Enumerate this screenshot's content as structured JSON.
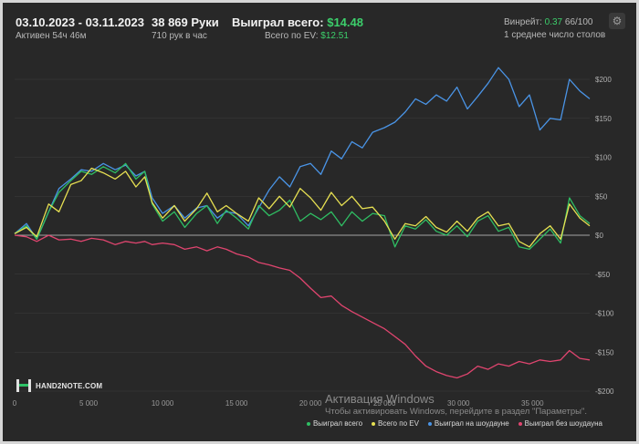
{
  "header": {
    "period": "03.10.2023 - 03.11.2023",
    "active": "Активен 54ч 46м",
    "hands": "38 869 Руки",
    "hands_rate": "710 рук в час",
    "won_label": "Выиграл всего:",
    "won_value": "$14.48",
    "ev_label": "Всего по EV:",
    "ev_value": "$12.51",
    "winrate_label": "Винрейт:",
    "winrate_value": "0.37",
    "winrate_hands": "66/100",
    "tables": "1 среднее число столов"
  },
  "logo": {
    "text": "HAND2NOTE.COM"
  },
  "watermark": {
    "title": "Активация Windows",
    "subtitle": "Чтобы активировать Windows, перейдите в раздел \"Параметры\"."
  },
  "colors": {
    "background": "#282828",
    "grid": "#3d3d3d",
    "zero_line": "#cfcfcf",
    "accent_green": "#3ccf6b"
  },
  "chart_data": {
    "type": "line",
    "xlabel": "",
    "ylabel": "",
    "xlim": [
      0,
      38869
    ],
    "ylim": [
      -200,
      220
    ],
    "x_ticks": [
      0,
      5000,
      10000,
      15000,
      20000,
      25000,
      30000,
      35000
    ],
    "x_tick_labels": [
      "0",
      "5 000",
      "10 000",
      "15 000",
      "20 000",
      "25 000",
      "30 000",
      "35 000"
    ],
    "y_ticks": [
      200,
      150,
      100,
      50,
      0,
      -50,
      -100,
      -150,
      -200
    ],
    "y_tick_labels": [
      "$200",
      "$150",
      "$100",
      "$50",
      "$0",
      "-$50",
      "-$100",
      "-$150",
      "-$200"
    ],
    "grid": true,
    "legend_position": "bottom-right",
    "series": [
      {
        "name": "Выиграл всего",
        "color": "#2fbe63",
        "points": [
          [
            0,
            2
          ],
          [
            800,
            12
          ],
          [
            1500,
            -5
          ],
          [
            2300,
            30
          ],
          [
            3000,
            55
          ],
          [
            3800,
            70
          ],
          [
            4500,
            82
          ],
          [
            5200,
            78
          ],
          [
            6000,
            88
          ],
          [
            6800,
            80
          ],
          [
            7500,
            92
          ],
          [
            8200,
            72
          ],
          [
            8800,
            82
          ],
          [
            9300,
            40
          ],
          [
            10000,
            18
          ],
          [
            10800,
            30
          ],
          [
            11500,
            10
          ],
          [
            12300,
            28
          ],
          [
            13000,
            38
          ],
          [
            13700,
            15
          ],
          [
            14300,
            32
          ],
          [
            15000,
            22
          ],
          [
            15800,
            8
          ],
          [
            16500,
            38
          ],
          [
            17200,
            25
          ],
          [
            17900,
            32
          ],
          [
            18600,
            45
          ],
          [
            19300,
            18
          ],
          [
            20000,
            28
          ],
          [
            20700,
            20
          ],
          [
            21400,
            30
          ],
          [
            22100,
            12
          ],
          [
            22800,
            30
          ],
          [
            23500,
            18
          ],
          [
            24200,
            28
          ],
          [
            25000,
            25
          ],
          [
            25700,
            -15
          ],
          [
            26400,
            12
          ],
          [
            27100,
            8
          ],
          [
            27800,
            20
          ],
          [
            28500,
            5
          ],
          [
            29200,
            0
          ],
          [
            29900,
            12
          ],
          [
            30600,
            -2
          ],
          [
            31300,
            18
          ],
          [
            32000,
            25
          ],
          [
            32700,
            5
          ],
          [
            33400,
            10
          ],
          [
            34100,
            -15
          ],
          [
            34800,
            -18
          ],
          [
            35500,
            -5
          ],
          [
            36200,
            8
          ],
          [
            36900,
            -10
          ],
          [
            37500,
            48
          ],
          [
            38200,
            25
          ],
          [
            38869,
            15
          ]
        ]
      },
      {
        "name": "Всего по EV",
        "color": "#e7e052",
        "points": [
          [
            0,
            2
          ],
          [
            800,
            10
          ],
          [
            1500,
            -2
          ],
          [
            2300,
            40
          ],
          [
            3000,
            30
          ],
          [
            3800,
            65
          ],
          [
            4500,
            70
          ],
          [
            5200,
            86
          ],
          [
            6000,
            80
          ],
          [
            6800,
            72
          ],
          [
            7500,
            82
          ],
          [
            8200,
            62
          ],
          [
            8800,
            75
          ],
          [
            9300,
            42
          ],
          [
            10000,
            22
          ],
          [
            10800,
            38
          ],
          [
            11500,
            18
          ],
          [
            12300,
            34
          ],
          [
            13000,
            54
          ],
          [
            13700,
            30
          ],
          [
            14300,
            38
          ],
          [
            15000,
            28
          ],
          [
            15800,
            18
          ],
          [
            16500,
            48
          ],
          [
            17200,
            34
          ],
          [
            17900,
            50
          ],
          [
            18600,
            36
          ],
          [
            19300,
            60
          ],
          [
            20000,
            48
          ],
          [
            20700,
            32
          ],
          [
            21400,
            55
          ],
          [
            22100,
            38
          ],
          [
            22800,
            50
          ],
          [
            23500,
            34
          ],
          [
            24200,
            36
          ],
          [
            25000,
            18
          ],
          [
            25700,
            -5
          ],
          [
            26400,
            15
          ],
          [
            27100,
            12
          ],
          [
            27800,
            24
          ],
          [
            28500,
            10
          ],
          [
            29200,
            4
          ],
          [
            29900,
            18
          ],
          [
            30600,
            5
          ],
          [
            31300,
            22
          ],
          [
            32000,
            30
          ],
          [
            32700,
            12
          ],
          [
            33400,
            15
          ],
          [
            34100,
            -8
          ],
          [
            34800,
            -15
          ],
          [
            35500,
            2
          ],
          [
            36200,
            12
          ],
          [
            36900,
            -5
          ],
          [
            37500,
            40
          ],
          [
            38200,
            22
          ],
          [
            38869,
            12
          ]
        ]
      },
      {
        "name": "Выиграл на шоудауне",
        "color": "#4a94e6",
        "points": [
          [
            0,
            2
          ],
          [
            800,
            15
          ],
          [
            1500,
            -5
          ],
          [
            2300,
            30
          ],
          [
            3000,
            60
          ],
          [
            3800,
            72
          ],
          [
            4500,
            84
          ],
          [
            5200,
            82
          ],
          [
            6000,
            92
          ],
          [
            6800,
            84
          ],
          [
            7500,
            90
          ],
          [
            8200,
            76
          ],
          [
            8800,
            82
          ],
          [
            9300,
            48
          ],
          [
            10000,
            28
          ],
          [
            10800,
            38
          ],
          [
            11500,
            22
          ],
          [
            12300,
            35
          ],
          [
            13000,
            38
          ],
          [
            13700,
            22
          ],
          [
            14300,
            30
          ],
          [
            15000,
            28
          ],
          [
            15800,
            12
          ],
          [
            16500,
            35
          ],
          [
            17200,
            58
          ],
          [
            17900,
            75
          ],
          [
            18600,
            62
          ],
          [
            19300,
            88
          ],
          [
            20000,
            92
          ],
          [
            20700,
            78
          ],
          [
            21400,
            108
          ],
          [
            22100,
            98
          ],
          [
            22800,
            120
          ],
          [
            23500,
            112
          ],
          [
            24200,
            132
          ],
          [
            25000,
            138
          ],
          [
            25700,
            145
          ],
          [
            26400,
            158
          ],
          [
            27100,
            175
          ],
          [
            27800,
            168
          ],
          [
            28500,
            180
          ],
          [
            29200,
            172
          ],
          [
            29900,
            190
          ],
          [
            30600,
            162
          ],
          [
            31300,
            178
          ],
          [
            32000,
            195
          ],
          [
            32700,
            215
          ],
          [
            33400,
            200
          ],
          [
            34100,
            165
          ],
          [
            34800,
            180
          ],
          [
            35500,
            135
          ],
          [
            36200,
            150
          ],
          [
            36900,
            148
          ],
          [
            37500,
            200
          ],
          [
            38200,
            185
          ],
          [
            38869,
            175
          ]
        ]
      },
      {
        "name": "Выиграл без шоудауна",
        "color": "#e0456f",
        "points": [
          [
            0,
            0
          ],
          [
            800,
            -2
          ],
          [
            1500,
            -8
          ],
          [
            2300,
            0
          ],
          [
            3000,
            -6
          ],
          [
            3800,
            -5
          ],
          [
            4500,
            -8
          ],
          [
            5200,
            -4
          ],
          [
            6000,
            -6
          ],
          [
            6800,
            -12
          ],
          [
            7500,
            -8
          ],
          [
            8200,
            -10
          ],
          [
            8800,
            -8
          ],
          [
            9300,
            -12
          ],
          [
            10000,
            -10
          ],
          [
            10800,
            -12
          ],
          [
            11500,
            -18
          ],
          [
            12300,
            -15
          ],
          [
            13000,
            -20
          ],
          [
            13700,
            -15
          ],
          [
            14300,
            -18
          ],
          [
            15000,
            -24
          ],
          [
            15800,
            -28
          ],
          [
            16500,
            -35
          ],
          [
            17200,
            -38
          ],
          [
            17900,
            -42
          ],
          [
            18600,
            -45
          ],
          [
            19300,
            -55
          ],
          [
            20000,
            -68
          ],
          [
            20700,
            -80
          ],
          [
            21400,
            -78
          ],
          [
            22100,
            -90
          ],
          [
            22800,
            -98
          ],
          [
            23500,
            -105
          ],
          [
            24200,
            -112
          ],
          [
            25000,
            -120
          ],
          [
            25700,
            -130
          ],
          [
            26400,
            -140
          ],
          [
            27100,
            -155
          ],
          [
            27800,
            -168
          ],
          [
            28500,
            -175
          ],
          [
            29200,
            -180
          ],
          [
            29900,
            -183
          ],
          [
            30600,
            -178
          ],
          [
            31300,
            -168
          ],
          [
            32000,
            -172
          ],
          [
            32700,
            -165
          ],
          [
            33400,
            -168
          ],
          [
            34100,
            -162
          ],
          [
            34800,
            -165
          ],
          [
            35500,
            -160
          ],
          [
            36200,
            -162
          ],
          [
            36900,
            -160
          ],
          [
            37500,
            -148
          ],
          [
            38200,
            -158
          ],
          [
            38869,
            -160
          ]
        ]
      }
    ]
  }
}
